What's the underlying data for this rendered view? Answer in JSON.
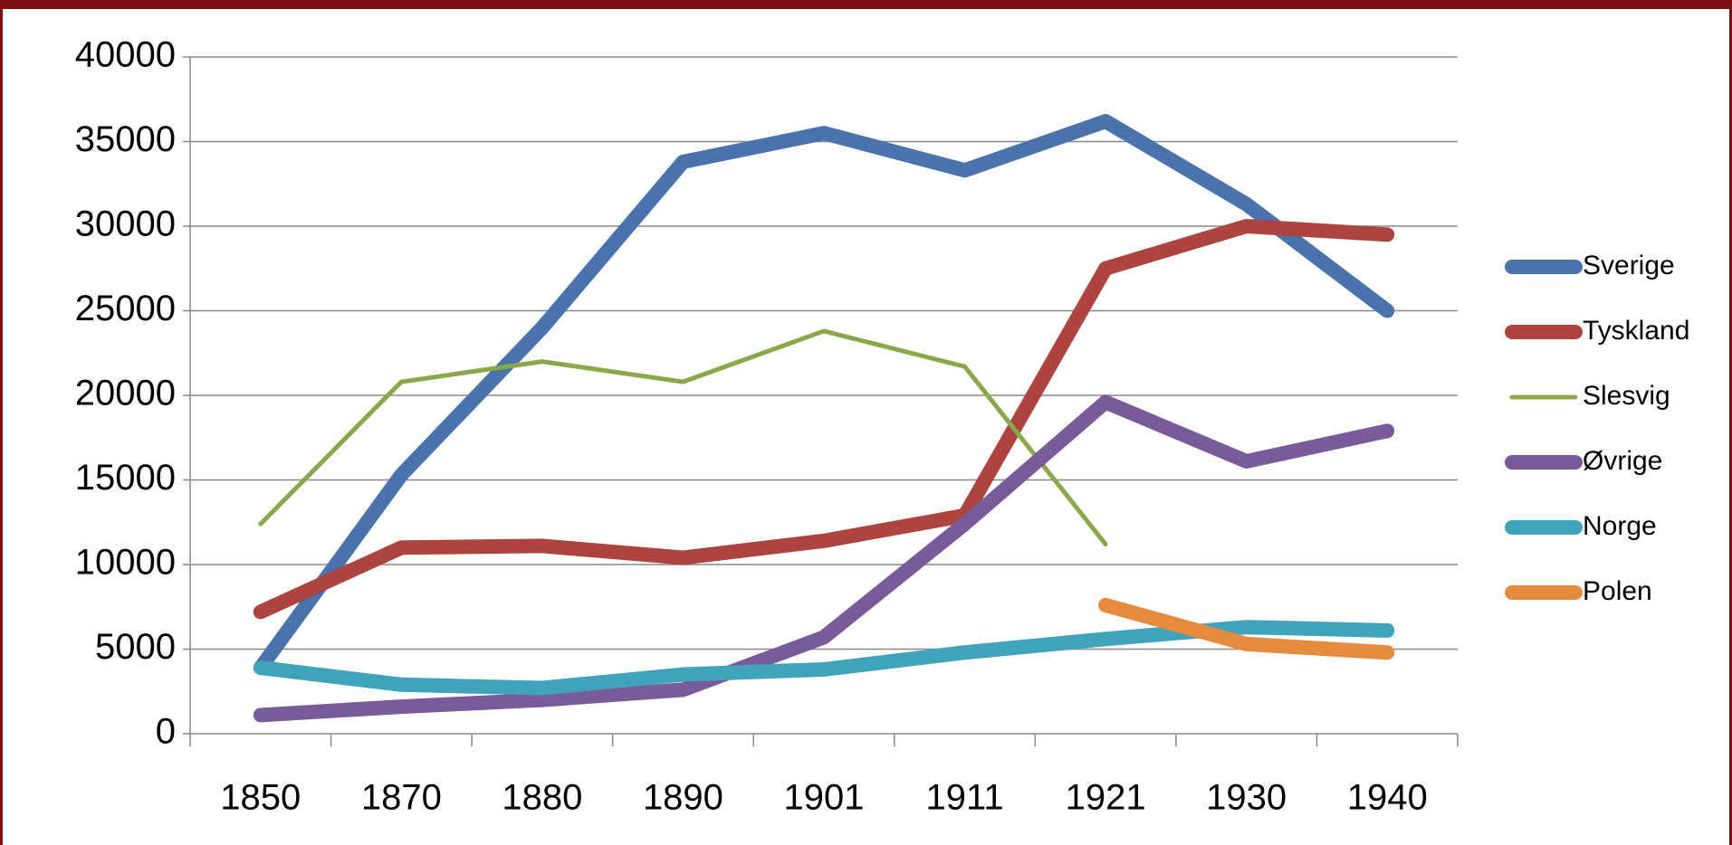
{
  "chart_data": {
    "type": "line",
    "categories": [
      "1850",
      "1870",
      "1880",
      "1890",
      "1901",
      "1911",
      "1921",
      "1930",
      "1940"
    ],
    "series": [
      {
        "name": "Sverige",
        "color": "#4a72ac",
        "values": [
          3900,
          15300,
          24000,
          33800,
          35500,
          33300,
          36200,
          31300,
          25000
        ]
      },
      {
        "name": "Tyskland",
        "color": "#ad4440",
        "values": [
          7200,
          11000,
          11100,
          10400,
          11400,
          12900,
          27500,
          30000,
          29500
        ]
      },
      {
        "name": "Slesvig",
        "color": "#8aa84a",
        "values": [
          12400,
          20800,
          22000,
          20800,
          23800,
          21700,
          11200,
          null,
          null
        ]
      },
      {
        "name": "Øvrige",
        "color": "#7a5b9a",
        "values": [
          1100,
          1600,
          2000,
          2600,
          5700,
          12400,
          19600,
          16100,
          17900
        ]
      },
      {
        "name": "Norge",
        "color": "#3ea3bb",
        "values": [
          3900,
          2900,
          2700,
          3500,
          3800,
          4800,
          5600,
          6300,
          6100
        ]
      },
      {
        "name": "Polen",
        "color": "#e68a3d",
        "values": [
          null,
          null,
          null,
          null,
          null,
          null,
          7600,
          5300,
          4800
        ]
      }
    ],
    "ylim": [
      0,
      40000
    ],
    "yticks": [
      0,
      5000,
      10000,
      15000,
      20000,
      25000,
      30000,
      35000,
      40000
    ],
    "grid": true,
    "legend": "right"
  }
}
